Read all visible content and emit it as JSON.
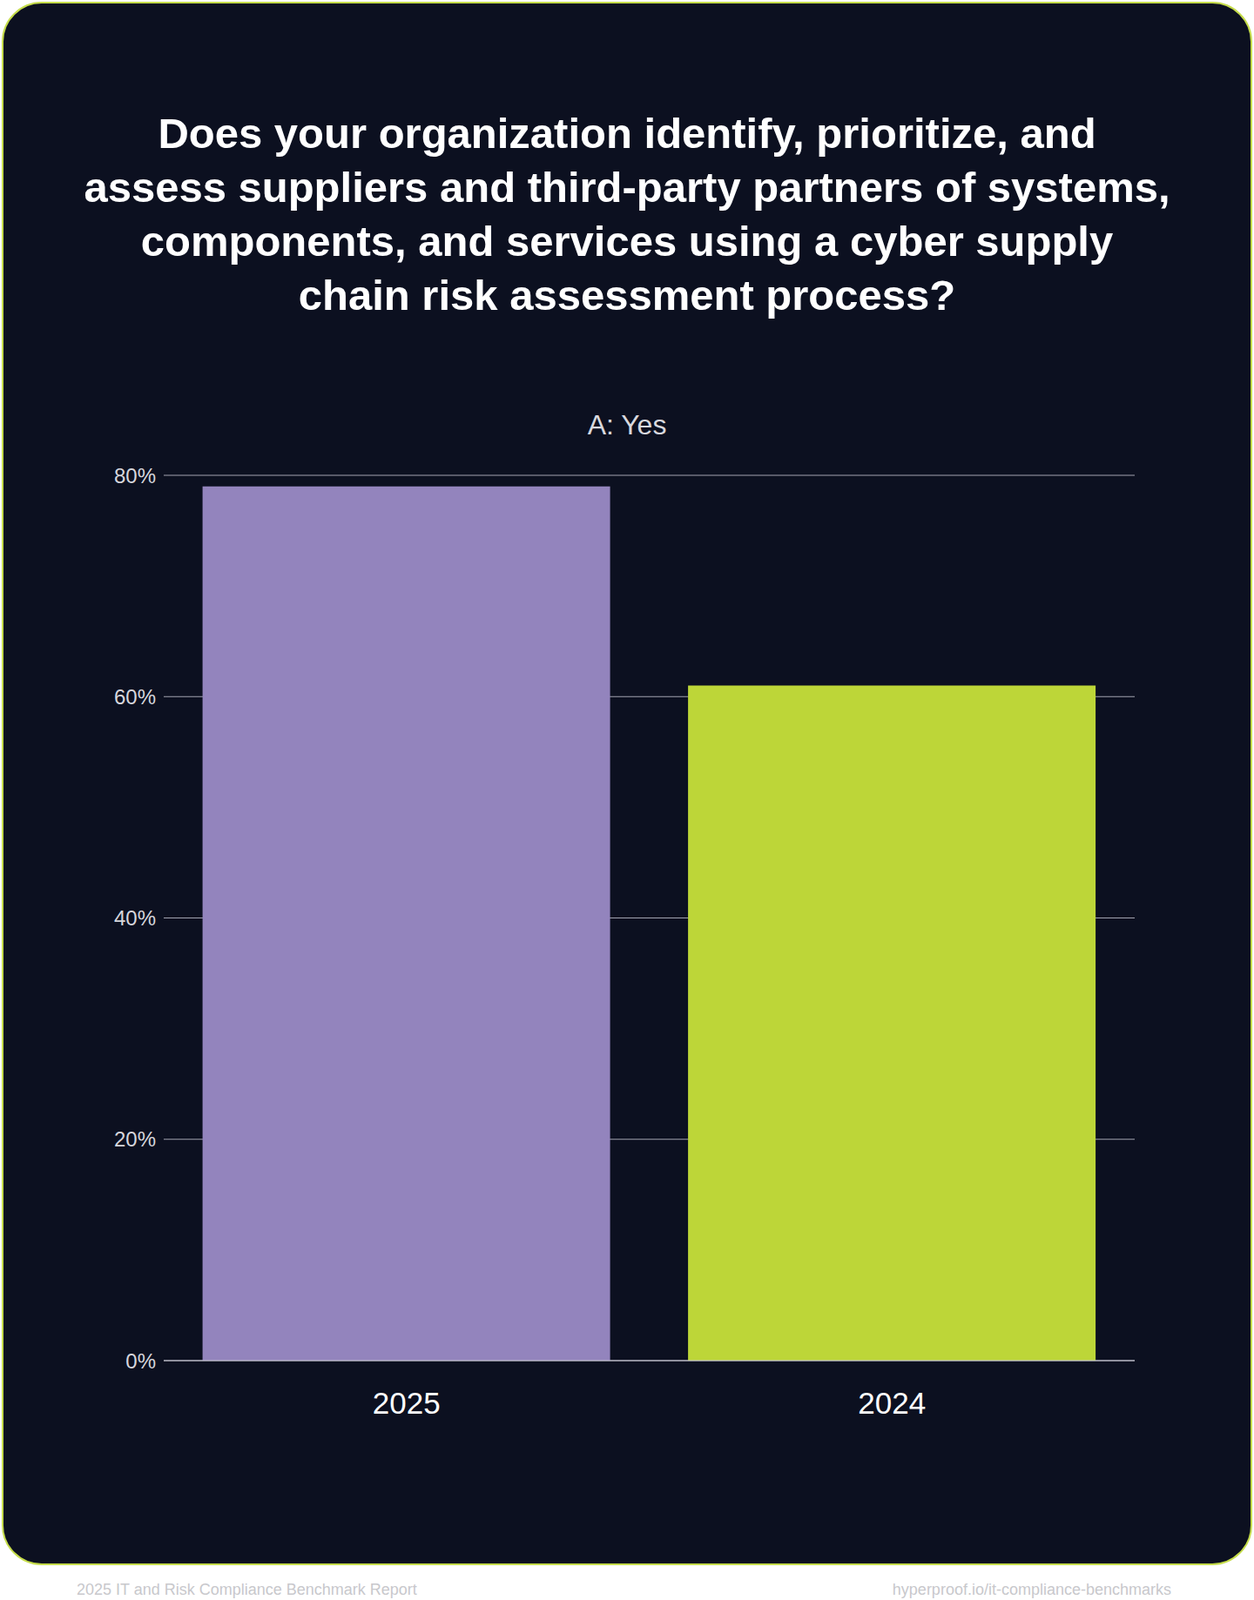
{
  "chart_data": {
    "type": "bar",
    "title": "Does your organization identify, prioritize, and assess suppliers and third-party partners of systems, components, and services using a cyber supply chain risk assessment process?",
    "subtitle": "A: Yes",
    "categories": [
      "2025",
      "2024"
    ],
    "values": [
      79,
      61
    ],
    "colors": [
      "#9384bd",
      "#bdd638"
    ],
    "ylim": [
      0,
      80
    ],
    "yticks": [
      {
        "value": 0,
        "label": "0%"
      },
      {
        "value": 20,
        "label": "20%"
      },
      {
        "value": 40,
        "label": "40%"
      },
      {
        "value": 60,
        "label": "60%"
      },
      {
        "value": 80,
        "label": "80%"
      }
    ],
    "grid": true
  },
  "footer": {
    "left": "2025 IT and Risk Compliance Benchmark Report",
    "right": "hyperproof.io/it-compliance-benchmarks"
  }
}
